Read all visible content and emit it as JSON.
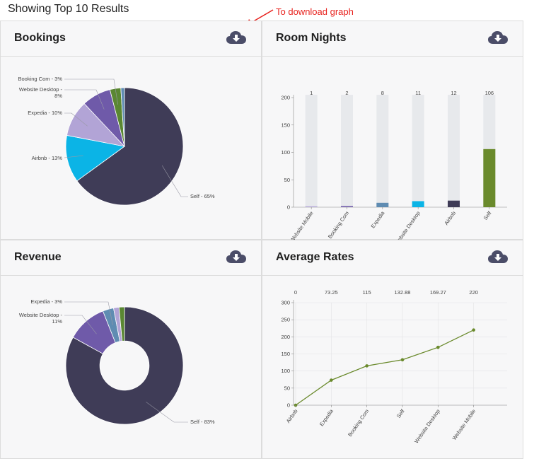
{
  "page": {
    "title": "Showing Top 10 Results"
  },
  "annotation": {
    "text": "To download graph"
  },
  "colors": {
    "self": "#3f3c57",
    "airbnb": "#0bb4e6",
    "expedia": "#b2a4d6",
    "website_desktop": "#6f5aa9",
    "booking_com": "#5a8732",
    "website_mobile": "#5f8cb2",
    "annotation": "#e8231f",
    "icon": "#4b4d68"
  },
  "panels": {
    "bookings": {
      "title": "Bookings",
      "download_icon": "cloud-download-icon"
    },
    "room_nights": {
      "title": "Room Nights",
      "download_icon": "cloud-download-icon"
    },
    "revenue": {
      "title": "Revenue",
      "download_icon": "cloud-download-icon"
    },
    "average_rates": {
      "title": "Average Rates",
      "download_icon": "cloud-download-icon"
    }
  },
  "chart_data": [
    {
      "type": "pie",
      "slices": [
        {
          "name": "Self",
          "value": 65,
          "label": "Self - 65%",
          "color": "#3f3c57"
        },
        {
          "name": "Airbnb",
          "value": 13,
          "label": "Airbnb - 13%",
          "color": "#0bb4e6"
        },
        {
          "name": "Expedia",
          "value": 10,
          "label": "Expedia - 10%",
          "color": "#b2a4d6"
        },
        {
          "name": "Website Desktop",
          "value": 8,
          "label": "Website Desktop -\n8%",
          "color": "#6f5aa9"
        },
        {
          "name": "Booking Com",
          "value": 3,
          "label": "Booking Com - 3%",
          "color": "#5a8732"
        },
        {
          "name": "Website Mobile",
          "value": 1,
          "label": "",
          "color": "#5f8cb2"
        }
      ]
    },
    {
      "type": "bar",
      "categories": [
        "Website Mobile",
        "Booking Com",
        "Expedia",
        "Website Desktop",
        "Airbnb",
        "Self"
      ],
      "values": [
        1,
        2,
        8,
        11,
        12,
        106
      ],
      "colors": [
        "#b2a4d6",
        "#6f5aa9",
        "#5f8cb2",
        "#0bb4e6",
        "#3f3c57",
        "#6a8a2c"
      ],
      "data_labels": [
        "1",
        "2",
        "8",
        "11",
        "12",
        "106"
      ],
      "ylim": [
        0,
        200
      ],
      "yticks": [
        0,
        50,
        100,
        150,
        200
      ],
      "background_max": 205
    },
    {
      "type": "pie",
      "donut": true,
      "slices": [
        {
          "name": "Self",
          "value": 83,
          "label": "Self - 83%",
          "color": "#3f3c57"
        },
        {
          "name": "Website Desktop",
          "value": 11,
          "label": "Website Desktop -\n11%",
          "color": "#6f5aa9"
        },
        {
          "name": "Expedia",
          "value": 3,
          "label": "Expedia - 3%",
          "color": "#5f8cb2"
        },
        {
          "name": "Booking Com",
          "value": 1.5,
          "label": "",
          "color": "#b2a4d6"
        },
        {
          "name": "Airbnb",
          "value": 1.5,
          "label": "",
          "color": "#5a8732"
        }
      ]
    },
    {
      "type": "line",
      "categories": [
        "Airbnb",
        "Expedia",
        "Booking Com",
        "Self",
        "Website Desktop",
        "Website Mobile"
      ],
      "values": [
        0,
        73.25,
        115,
        132.88,
        169.27,
        220
      ],
      "data_labels": [
        "0",
        "73.25",
        "115",
        "132.88",
        "169.27",
        "220"
      ],
      "color": "#6a8a2c",
      "ylim": [
        0,
        300
      ],
      "yticks": [
        0,
        50,
        100,
        150,
        200,
        250,
        300
      ],
      "grid": true
    }
  ]
}
